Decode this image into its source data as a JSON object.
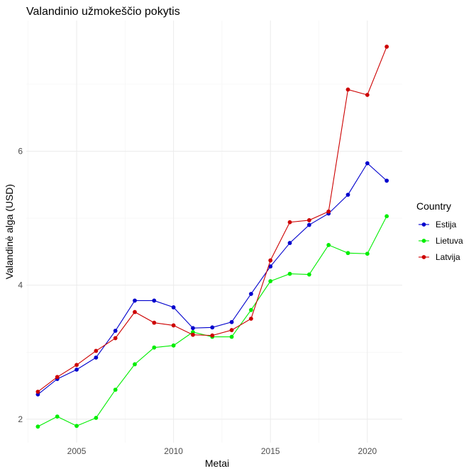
{
  "chart_data": {
    "type": "line",
    "title": "Valandinio užmokeščio pokytis",
    "xlabel": "Metai",
    "ylabel": "Valandinė alga (USD)",
    "x": [
      2003,
      2004,
      2005,
      2006,
      2007,
      2008,
      2009,
      2010,
      2011,
      2012,
      2013,
      2014,
      2015,
      2016,
      2017,
      2018,
      2019,
      2020,
      2021
    ],
    "xlim": [
      2002.4,
      2021.8
    ],
    "ylim": [
      1.65,
      7.95
    ],
    "xticks": [
      2005,
      2010,
      2015,
      2020
    ],
    "xtick_labels": [
      "2005",
      "2010",
      "2015",
      "2020"
    ],
    "yticks": [
      2,
      4,
      6
    ],
    "ytick_labels": [
      "2",
      "4",
      "6"
    ],
    "grid": true,
    "legend": {
      "title": "Country",
      "position": "right"
    },
    "series": [
      {
        "name": "Estija",
        "color": "#0000cd",
        "values": [
          2.37,
          2.6,
          2.74,
          2.92,
          3.32,
          3.77,
          3.77,
          3.67,
          3.36,
          3.37,
          3.45,
          3.87,
          4.28,
          4.63,
          4.9,
          5.07,
          5.35,
          5.82,
          5.56
        ]
      },
      {
        "name": "Lietuva",
        "color": "#00ee00",
        "values": [
          1.89,
          2.04,
          1.9,
          2.02,
          2.44,
          2.82,
          3.07,
          3.1,
          3.3,
          3.23,
          3.23,
          3.63,
          4.06,
          4.17,
          4.16,
          4.6,
          4.48,
          4.47,
          5.03
        ]
      },
      {
        "name": "Latvija",
        "color": "#cd0000",
        "values": [
          2.41,
          2.63,
          2.81,
          3.02,
          3.21,
          3.6,
          3.44,
          3.4,
          3.26,
          3.25,
          3.33,
          3.5,
          4.37,
          4.94,
          4.97,
          5.1,
          6.92,
          6.84,
          7.56
        ]
      }
    ]
  }
}
